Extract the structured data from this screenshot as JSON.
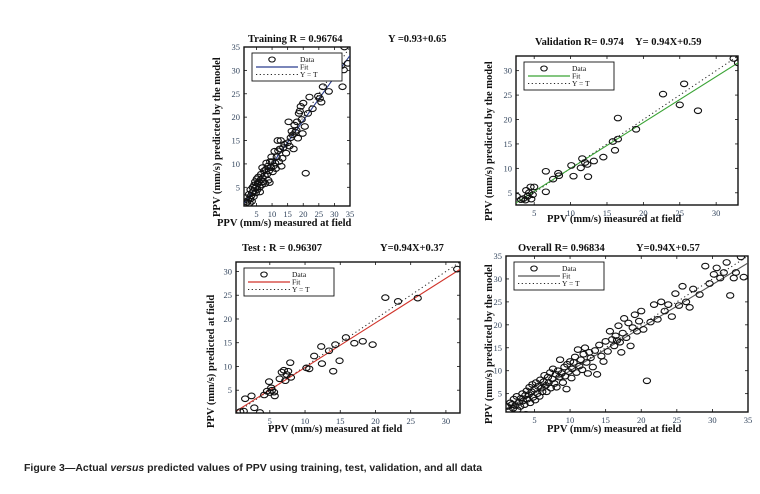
{
  "caption": {
    "prefix": "Figure 3—Actual ",
    "italic": "versus",
    "suffix": " predicted values of PPV using training, test, validation, and all data"
  },
  "chart_data": [
    {
      "type": "scatter",
      "id": "training",
      "title": "Training R = 0.96764",
      "equation": "Y  =0.93+0.65",
      "xlabel": "PPV (mm/s) measured at field",
      "ylabel": "PPV (mm/s)  predicted by the model",
      "xlim": [
        1,
        35
      ],
      "ylim": [
        1,
        35
      ],
      "xticks": [
        5,
        10,
        15,
        20,
        25,
        30,
        35
      ],
      "yticks": [
        5,
        10,
        15,
        20,
        25,
        30,
        35
      ],
      "fit": {
        "slope": 0.93,
        "intercept": 0.65,
        "color": "#2b3f8f"
      },
      "legend": {
        "position": "top-left",
        "entries": [
          "Data",
          "Fit",
          "Y = T"
        ]
      },
      "points": [
        [
          1.5,
          2.8
        ],
        [
          2,
          1.8
        ],
        [
          2.3,
          2.2
        ],
        [
          2.6,
          3.5
        ],
        [
          2.8,
          1.6
        ],
        [
          3,
          2.5
        ],
        [
          3.1,
          4.5
        ],
        [
          3.3,
          3.2
        ],
        [
          3.5,
          2
        ],
        [
          3.6,
          3.8
        ],
        [
          3.8,
          5
        ],
        [
          4,
          4.2
        ],
        [
          4.1,
          3
        ],
        [
          4.3,
          5.5
        ],
        [
          4.5,
          4.8
        ],
        [
          4.6,
          6.2
        ],
        [
          4.8,
          3.8
        ],
        [
          5,
          5.2
        ],
        [
          5.1,
          6.8
        ],
        [
          5.3,
          4.5
        ],
        [
          5.5,
          5.8
        ],
        [
          5.6,
          7.2
        ],
        [
          5.8,
          6.2
        ],
        [
          6,
          5
        ],
        [
          6.1,
          4
        ],
        [
          6.3,
          6.6
        ],
        [
          6.5,
          7.8
        ],
        [
          6.7,
          5.5
        ],
        [
          6.9,
          9.2
        ],
        [
          7,
          7
        ],
        [
          7.2,
          6.2
        ],
        [
          7.4,
          8.5
        ],
        [
          7.6,
          7.5
        ],
        [
          7.8,
          5.8
        ],
        [
          8,
          8.8
        ],
        [
          8.2,
          10.2
        ],
        [
          8.4,
          7.8
        ],
        [
          8.6,
          9.5
        ],
        [
          8.8,
          6.5
        ],
        [
          9,
          8.5
        ],
        [
          9.2,
          6
        ],
        [
          9.4,
          10.5
        ],
        [
          9.6,
          9.2
        ],
        [
          9.8,
          11.5
        ],
        [
          10,
          10.5
        ],
        [
          10.2,
          8.3
        ],
        [
          10.5,
          9.6
        ],
        [
          10.8,
          12.7
        ],
        [
          11,
          10.2
        ],
        [
          11.2,
          9
        ],
        [
          11.5,
          11.5
        ],
        [
          11.8,
          15
        ],
        [
          12,
          12.8
        ],
        [
          12.2,
          10.5
        ],
        [
          12.5,
          13.2
        ],
        [
          12.8,
          15
        ],
        [
          13,
          9.5
        ],
        [
          13.3,
          11.2
        ],
        [
          13.6,
          13.5
        ],
        [
          14,
          14.2
        ],
        [
          14.5,
          12.3
        ],
        [
          15,
          14.5
        ],
        [
          15.3,
          19
        ],
        [
          15.6,
          13.8
        ],
        [
          16,
          15.6
        ],
        [
          16.3,
          17
        ],
        [
          16.6,
          16.2
        ],
        [
          16.9,
          13.2
        ],
        [
          17.2,
          18.3
        ],
        [
          17.5,
          16.8
        ],
        [
          17.8,
          17.2
        ],
        [
          18,
          19
        ],
        [
          18.3,
          15.5
        ],
        [
          18.6,
          20.8
        ],
        [
          18.9,
          21.3
        ],
        [
          19.2,
          22.3
        ],
        [
          19.5,
          19.5
        ],
        [
          19.8,
          16.5
        ],
        [
          20,
          23
        ],
        [
          20.5,
          18
        ],
        [
          20.8,
          8
        ],
        [
          21.5,
          20.8
        ],
        [
          22,
          24.3
        ],
        [
          23,
          21.8
        ],
        [
          24.8,
          24.5
        ],
        [
          25.3,
          24
        ],
        [
          25.8,
          23.2
        ],
        [
          26.3,
          26.5
        ],
        [
          26.8,
          29
        ],
        [
          27.6,
          28.5
        ],
        [
          28.2,
          25.5
        ],
        [
          30.2,
          33
        ],
        [
          30.8,
          29
        ],
        [
          32.6,
          26.5
        ],
        [
          32.2,
          31
        ],
        [
          33,
          30.1
        ],
        [
          33.2,
          35
        ],
        [
          34.3,
          31.5
        ]
      ]
    },
    {
      "type": "scatter",
      "id": "validation",
      "title": "Validation R= 0.974",
      "equation": "Y= 0.94X+0.59",
      "xlabel": "PPV (mm/s) measured at field",
      "ylabel": "PPV (mm/s)  predicted by the model",
      "xlim": [
        2.5,
        33
      ],
      "ylim": [
        2.5,
        33
      ],
      "xticks": [
        5,
        10,
        15,
        20,
        25,
        30
      ],
      "yticks": [
        5,
        10,
        15,
        20,
        25,
        30
      ],
      "fit": {
        "slope": 0.94,
        "intercept": 0.59,
        "color": "#3aa335"
      },
      "legend": {
        "position": "top-left",
        "entries": [
          "Data",
          "Fit",
          "Y = T"
        ]
      },
      "points": [
        [
          2.6,
          4.3
        ],
        [
          3.2,
          3.6
        ],
        [
          3.5,
          3.8
        ],
        [
          3.8,
          3.5
        ],
        [
          3.9,
          5.5
        ],
        [
          4.1,
          4.3
        ],
        [
          4.3,
          5
        ],
        [
          4.5,
          6.2
        ],
        [
          4.6,
          3.7
        ],
        [
          4.8,
          4.6
        ],
        [
          5,
          6.2
        ],
        [
          6.6,
          5.2
        ],
        [
          6.6,
          9.4
        ],
        [
          7.6,
          7.8
        ],
        [
          8.3,
          9
        ],
        [
          8.4,
          8.5
        ],
        [
          10.1,
          10.6
        ],
        [
          10.4,
          8.4
        ],
        [
          11.4,
          10.1
        ],
        [
          11.6,
          12
        ],
        [
          12,
          11.2
        ],
        [
          12.3,
          10.8
        ],
        [
          12.4,
          8.3
        ],
        [
          13.2,
          11.5
        ],
        [
          14.5,
          12.3
        ],
        [
          15.8,
          15.5
        ],
        [
          16.1,
          13.7
        ],
        [
          16.5,
          16
        ],
        [
          16.5,
          20.3
        ],
        [
          19,
          18
        ],
        [
          22.7,
          25.2
        ],
        [
          25,
          23
        ],
        [
          25.6,
          27.3
        ],
        [
          27.5,
          21.8
        ],
        [
          32.4,
          32.5
        ],
        [
          33,
          31.6
        ]
      ]
    },
    {
      "type": "scatter",
      "id": "test",
      "title": "Test : R = 0.96307",
      "equation": "Y=0.94X+0.37",
      "xlabel": "PPV (mm/s) measured at field",
      "ylabel": "PPV (mm/s) predicted at field",
      "xlim": [
        0.2,
        32
      ],
      "ylim": [
        0.2,
        32
      ],
      "xticks": [
        5,
        10,
        15,
        20,
        25,
        30
      ],
      "yticks": [
        5,
        10,
        15,
        20,
        25,
        30
      ],
      "fit": {
        "slope": 0.94,
        "intercept": 0.37,
        "color": "#d0332a"
      },
      "legend": {
        "position": "top-left",
        "entries": [
          "Data",
          "Fit",
          "Y = T"
        ]
      },
      "points": [
        [
          0.8,
          0.5
        ],
        [
          1.3,
          0.6
        ],
        [
          1.5,
          3.2
        ],
        [
          2.4,
          3.8
        ],
        [
          2.8,
          1.3
        ],
        [
          3.6,
          0.3
        ],
        [
          4.2,
          4
        ],
        [
          4.6,
          4.8
        ],
        [
          4.9,
          6.8
        ],
        [
          5,
          4.5
        ],
        [
          5.2,
          5.5
        ],
        [
          5.3,
          5
        ],
        [
          5.6,
          4.6
        ],
        [
          5.7,
          3.8
        ],
        [
          6.4,
          7.4
        ],
        [
          6.7,
          8.8
        ],
        [
          7,
          9.2
        ],
        [
          7.2,
          7
        ],
        [
          7.4,
          8.3
        ],
        [
          7.6,
          9
        ],
        [
          7.9,
          10.8
        ],
        [
          8,
          7.7
        ],
        [
          10.2,
          9.7
        ],
        [
          10.6,
          9.5
        ],
        [
          11.3,
          12.2
        ],
        [
          12.3,
          14.2
        ],
        [
          12.4,
          10.6
        ],
        [
          13.4,
          13.3
        ],
        [
          14,
          9
        ],
        [
          14.3,
          14.6
        ],
        [
          14.9,
          11.2
        ],
        [
          15.8,
          16.1
        ],
        [
          17,
          14.9
        ],
        [
          18.2,
          15.3
        ],
        [
          19.6,
          14.6
        ],
        [
          21.4,
          24.5
        ],
        [
          23.2,
          23.7
        ],
        [
          26,
          24.4
        ],
        [
          31.6,
          30.5
        ]
      ]
    },
    {
      "type": "scatter",
      "id": "overall",
      "title": "Overall R= 0.96834",
      "equation": "Y=0.94X+0.57",
      "xlabel": "PPV (mm/s) measured at field",
      "ylabel": "PPV (mm/s)  predicted by the model",
      "xlim": [
        1,
        35
      ],
      "ylim": [
        1,
        35
      ],
      "xticks": [
        5,
        10,
        15,
        20,
        25,
        30,
        35
      ],
      "yticks": [
        5,
        10,
        15,
        20,
        25,
        30,
        35
      ],
      "fit": {
        "slope": 0.94,
        "intercept": 0.57,
        "color": "#555555"
      },
      "legend": {
        "position": "top-left",
        "entries": [
          "Data",
          "Fit",
          "Y = T"
        ]
      },
      "points": [
        [
          1.2,
          2.2
        ],
        [
          1.4,
          1.3
        ],
        [
          1.6,
          3
        ],
        [
          1.8,
          2.6
        ],
        [
          2,
          1.8
        ],
        [
          2.1,
          3.8
        ],
        [
          2.3,
          2.4
        ],
        [
          2.5,
          4.4
        ],
        [
          2.6,
          1.5
        ],
        [
          2.8,
          3.1
        ],
        [
          3,
          2.2
        ],
        [
          3.1,
          4
        ],
        [
          3.3,
          5
        ],
        [
          3.4,
          3.4
        ],
        [
          3.6,
          2.6
        ],
        [
          3.7,
          4.6
        ],
        [
          3.8,
          0.5
        ],
        [
          3.9,
          5.6
        ],
        [
          4,
          3.8
        ],
        [
          4.2,
          4.8
        ],
        [
          4.3,
          6.4
        ],
        [
          4.4,
          3
        ],
        [
          4.6,
          5.4
        ],
        [
          4.7,
          7
        ],
        [
          4.8,
          4.2
        ],
        [
          5,
          6
        ],
        [
          5.1,
          3.6
        ],
        [
          5.2,
          7.4
        ],
        [
          5.4,
          5
        ],
        [
          5.5,
          6.6
        ],
        [
          5.7,
          4.4
        ],
        [
          5.8,
          8
        ],
        [
          6,
          6.2
        ],
        [
          6.1,
          5.4
        ],
        [
          6.3,
          7.6
        ],
        [
          6.4,
          9
        ],
        [
          6.6,
          6.8
        ],
        [
          6.7,
          5.4
        ],
        [
          6.9,
          8.6
        ],
        [
          7,
          7.4
        ],
        [
          7.2,
          9.6
        ],
        [
          7.3,
          6.2
        ],
        [
          7.5,
          8.2
        ],
        [
          7.6,
          10.4
        ],
        [
          7.8,
          7.2
        ],
        [
          8,
          9.2
        ],
        [
          8.1,
          6.4
        ],
        [
          8.3,
          10
        ],
        [
          8.5,
          8.6
        ],
        [
          8.6,
          12.4
        ],
        [
          8.8,
          9.4
        ],
        [
          9,
          7.4
        ],
        [
          9.2,
          10.8
        ],
        [
          9.3,
          8.8
        ],
        [
          9.5,
          6
        ],
        [
          9.6,
          11.4
        ],
        [
          9.8,
          9.8
        ],
        [
          10,
          12
        ],
        [
          10.2,
          8.4
        ],
        [
          10.3,
          10.4
        ],
        [
          10.5,
          11.8
        ],
        [
          10.7,
          13
        ],
        [
          10.9,
          9.6
        ],
        [
          11.1,
          14.6
        ],
        [
          11.3,
          11
        ],
        [
          11.5,
          12.4
        ],
        [
          11.7,
          10.2
        ],
        [
          11.9,
          13.6
        ],
        [
          12.1,
          15
        ],
        [
          12.3,
          11.8
        ],
        [
          12.5,
          9.4
        ],
        [
          12.7,
          14
        ],
        [
          12.9,
          12.8
        ],
        [
          13.2,
          10.8
        ],
        [
          13.5,
          14.4
        ],
        [
          13.8,
          9.2
        ],
        [
          14.1,
          15.6
        ],
        [
          14.4,
          13.2
        ],
        [
          14.7,
          12
        ],
        [
          15,
          16.4
        ],
        [
          15.3,
          14.2
        ],
        [
          15.6,
          18.6
        ],
        [
          15.9,
          16.8
        ],
        [
          16.2,
          15.4
        ],
        [
          16.4,
          17.6
        ],
        [
          16.6,
          16.6
        ],
        [
          16.8,
          19.8
        ],
        [
          17,
          16.2
        ],
        [
          17.2,
          14
        ],
        [
          17.4,
          18.2
        ],
        [
          17.6,
          21.4
        ],
        [
          17.9,
          17.2
        ],
        [
          18.2,
          20.4
        ],
        [
          18.5,
          15.4
        ],
        [
          18.8,
          19.4
        ],
        [
          19.1,
          22.2
        ],
        [
          19.4,
          18.6
        ],
        [
          19.7,
          20.8
        ],
        [
          20,
          23
        ],
        [
          20.3,
          19
        ],
        [
          20.8,
          7.8
        ],
        [
          21.3,
          20.6
        ],
        [
          21.8,
          24.4
        ],
        [
          22.3,
          21.2
        ],
        [
          22.8,
          25
        ],
        [
          23.3,
          23
        ],
        [
          23.8,
          24.4
        ],
        [
          24.3,
          21.8
        ],
        [
          24.8,
          26.8
        ],
        [
          25.3,
          24.2
        ],
        [
          25.8,
          28.4
        ],
        [
          26.3,
          25
        ],
        [
          26.8,
          23.8
        ],
        [
          27.3,
          27.8
        ],
        [
          28.2,
          26.6
        ],
        [
          29,
          32.8
        ],
        [
          29.6,
          29
        ],
        [
          30.2,
          31
        ],
        [
          30.6,
          32.4
        ],
        [
          31.1,
          30.2
        ],
        [
          31.6,
          31.4
        ],
        [
          32,
          33.6
        ],
        [
          32.5,
          26.4
        ],
        [
          33,
          30.2
        ],
        [
          33.3,
          31.4
        ],
        [
          34,
          34.8
        ],
        [
          34.4,
          30.4
        ]
      ]
    }
  ]
}
